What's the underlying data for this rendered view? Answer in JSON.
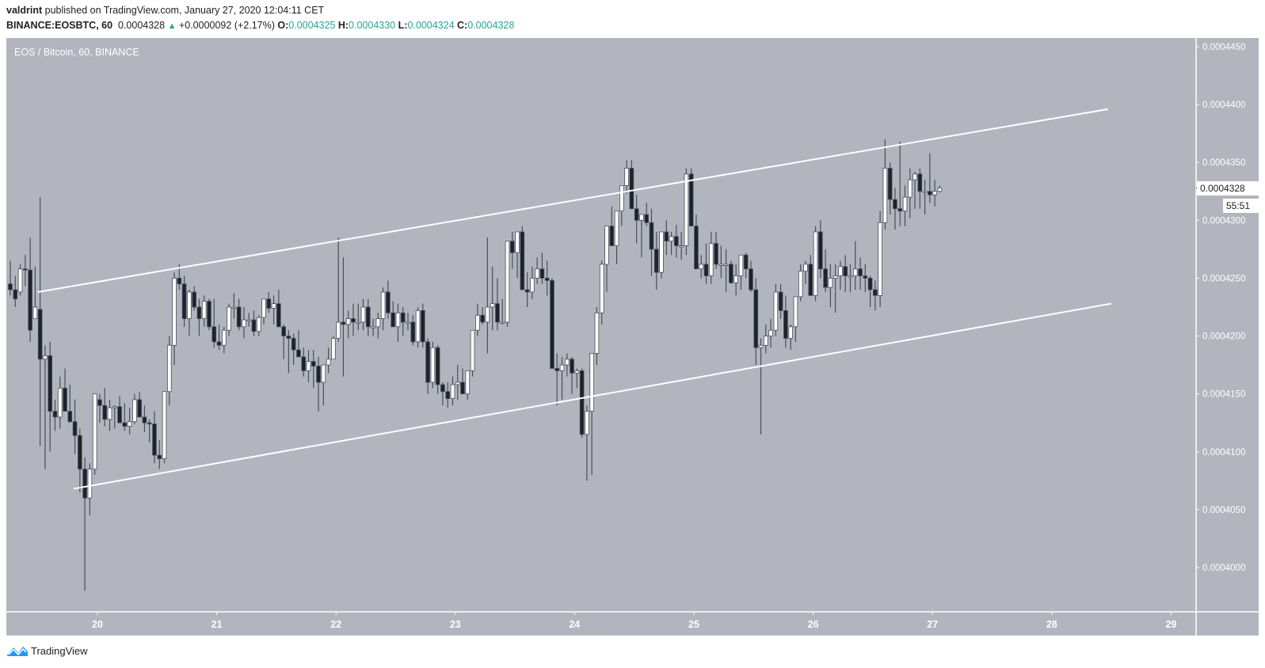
{
  "header": {
    "author": "valdrint",
    "published_text": " published on TradingView.com, January 27, 2020 12:04:11 CET",
    "symbol": "BINANCE:EOSBTC, 60",
    "last_price": "0.0004328",
    "change_icon": "triangle-up-icon",
    "change": "+0.0000092 (+2.17%)",
    "ohlc": {
      "o_label": "O:",
      "o": "0.0004325",
      "h_label": "H:",
      "h": "0.0004330",
      "l_label": "L:",
      "l": "0.0004324",
      "c_label": "C:",
      "c": "0.0004328"
    }
  },
  "chart": {
    "legend_title": "EOS / Bitcoin, 60, BINANCE",
    "current_price_tag": "0.0004328",
    "countdown_tag": "55:51",
    "colors": {
      "background": "#b2b5be",
      "up_candle": "#ffffff",
      "down_candle": "#1e222d",
      "wick": "#4a4e59",
      "trendline": "#ffffff",
      "axis_text": "#ffffff",
      "positive": "#26a69a"
    }
  },
  "footer": {
    "brand": "TradingView",
    "brand_icon": "tradingview-logo-icon"
  },
  "chart_data": {
    "type": "candlestick",
    "title": "EOS / Bitcoin, 60, BINANCE",
    "xlabel": "",
    "ylabel": "",
    "ylim": [
      0.000397,
      0.0004455
    ],
    "grid": false,
    "x_ticks": [
      "20",
      "21",
      "22",
      "23",
      "24",
      "25",
      "26",
      "27",
      "28",
      "29"
    ],
    "y_ticks": [
      "0.0004450",
      "0.0004400",
      "0.0004350",
      "0.0004300",
      "0.0004250",
      "0.0004200",
      "0.0004150",
      "0.0004100",
      "0.0004050",
      "0.0004000"
    ],
    "price_unit_note": "values below are price x 1e7 (e.g. 4250 = 0.0004250)",
    "trendlines": [
      {
        "name": "channel-upper",
        "from": {
          "day": 19.5,
          "price": 4238
        },
        "to": {
          "day": 28.47,
          "price": 4396
        }
      },
      {
        "name": "channel-lower",
        "from": {
          "day": 19.8,
          "price": 4068
        },
        "to": {
          "day": 28.5,
          "price": 4228
        }
      }
    ],
    "candles": [
      [
        4245,
        4265,
        4235,
        4240
      ],
      [
        4240,
        4252,
        4225,
        4232
      ],
      [
        4238,
        4262,
        4235,
        4258
      ],
      [
        4258,
        4270,
        4243,
        4257
      ],
      [
        4257,
        4285,
        4195,
        4205
      ],
      [
        4215,
        4260,
        4222,
        4225
      ],
      [
        4223,
        4320,
        4105,
        4180
      ],
      [
        4180,
        4192,
        4085,
        4183
      ],
      [
        4183,
        4195,
        4100,
        4135
      ],
      [
        4135,
        4145,
        4118,
        4130
      ],
      [
        4130,
        4165,
        4120,
        4155
      ],
      [
        4155,
        4172,
        4140,
        4135
      ],
      [
        4135,
        4158,
        4125,
        4126
      ],
      [
        4126,
        4145,
        4098,
        4114
      ],
      [
        4114,
        4120,
        4065,
        4085
      ],
      [
        4085,
        4095,
        3980,
        4060
      ],
      [
        4060,
        4090,
        4045,
        4085
      ],
      [
        4085,
        4135,
        4080,
        4150
      ],
      [
        4145,
        4150,
        4125,
        4140
      ],
      [
        4140,
        4155,
        4122,
        4128
      ],
      [
        4128,
        4145,
        4118,
        4138
      ],
      [
        4138,
        4140,
        4120,
        4139
      ],
      [
        4139,
        4148,
        4128,
        4125
      ],
      [
        4125,
        4142,
        4118,
        4122
      ],
      [
        4122,
        4138,
        4115,
        4126
      ],
      [
        4126,
        4150,
        4124,
        4145
      ],
      [
        4145,
        4152,
        4130,
        4130
      ],
      [
        4130,
        4140,
        4117,
        4125
      ],
      [
        4125,
        4128,
        4108,
        4124
      ],
      [
        4124,
        4135,
        4090,
        4097
      ],
      [
        4097,
        4110,
        4085,
        4094
      ],
      [
        4094,
        4152,
        4090,
        4152
      ],
      [
        4152,
        4200,
        4140,
        4192
      ],
      [
        4192,
        4255,
        4175,
        4250
      ],
      [
        4250,
        4262,
        4240,
        4245
      ],
      [
        4245,
        4252,
        4208,
        4215
      ],
      [
        4215,
        4240,
        4200,
        4238
      ],
      [
        4238,
        4243,
        4222,
        4225
      ],
      [
        4225,
        4232,
        4200,
        4215
      ],
      [
        4215,
        4235,
        4208,
        4230
      ],
      [
        4230,
        4232,
        4205,
        4208
      ],
      [
        4208,
        4232,
        4190,
        4195
      ],
      [
        4195,
        4210,
        4188,
        4192
      ],
      [
        4192,
        4208,
        4185,
        4205
      ],
      [
        4205,
        4228,
        4200,
        4225
      ],
      [
        4225,
        4237,
        4215,
        4225
      ],
      [
        4225,
        4232,
        4205,
        4208
      ],
      [
        4208,
        4225,
        4198,
        4214
      ],
      [
        4214,
        4220,
        4208,
        4214
      ],
      [
        4214,
        4222,
        4200,
        4204
      ],
      [
        4204,
        4218,
        4200,
        4216
      ],
      [
        4216,
        4232,
        4210,
        4232
      ],
      [
        4232,
        4238,
        4220,
        4224
      ],
      [
        4224,
        4235,
        4210,
        4228
      ],
      [
        4228,
        4240,
        4208,
        4208
      ],
      [
        4208,
        4210,
        4180,
        4200
      ],
      [
        4200,
        4205,
        4168,
        4198
      ],
      [
        4198,
        4202,
        4175,
        4188
      ],
      [
        4188,
        4205,
        4182,
        4182
      ],
      [
        4182,
        4190,
        4165,
        4170
      ],
      [
        4170,
        4188,
        4160,
        4178
      ],
      [
        4178,
        4188,
        4155,
        4174
      ],
      [
        4174,
        4182,
        4135,
        4160
      ],
      [
        4160,
        4172,
        4140,
        4175
      ],
      [
        4175,
        4190,
        4168,
        4180
      ],
      [
        4180,
        4200,
        4182,
        4198
      ],
      [
        4198,
        4285,
        4195,
        4212
      ],
      [
        4212,
        4268,
        4165,
        4210
      ],
      [
        4210,
        4222,
        4198,
        4215
      ],
      [
        4215,
        4228,
        4200,
        4212
      ],
      [
        4212,
        4228,
        4205,
        4212
      ],
      [
        4212,
        4232,
        4205,
        4225
      ],
      [
        4225,
        4232,
        4200,
        4208
      ],
      [
        4208,
        4215,
        4200,
        4208
      ],
      [
        4208,
        4220,
        4198,
        4215
      ],
      [
        4215,
        4242,
        4205,
        4238
      ],
      [
        4238,
        4248,
        4215,
        4220
      ],
      [
        4220,
        4230,
        4210,
        4208
      ],
      [
        4208,
        4228,
        4195,
        4220
      ],
      [
        4220,
        4225,
        4200,
        4212
      ],
      [
        4212,
        4220,
        4205,
        4212
      ],
      [
        4212,
        4218,
        4192,
        4195
      ],
      [
        4195,
        4225,
        4190,
        4222
      ],
      [
        4222,
        4228,
        4190,
        4195
      ],
      [
        4195,
        4198,
        4150,
        4160
      ],
      [
        4160,
        4195,
        4155,
        4190
      ],
      [
        4190,
        4192,
        4150,
        4158
      ],
      [
        4158,
        4160,
        4140,
        4152
      ],
      [
        4152,
        4160,
        4138,
        4146
      ],
      [
        4146,
        4165,
        4140,
        4158
      ],
      [
        4158,
        4175,
        4145,
        4160
      ],
      [
        4160,
        4172,
        4150,
        4150
      ],
      [
        4150,
        4165,
        4145,
        4170
      ],
      [
        4170,
        4205,
        4165,
        4205
      ],
      [
        4205,
        4228,
        4200,
        4218
      ],
      [
        4218,
        4225,
        4210,
        4212
      ],
      [
        4212,
        4285,
        4185,
        4225
      ],
      [
        4225,
        4260,
        4205,
        4228
      ],
      [
        4228,
        4250,
        4205,
        4212
      ],
      [
        4212,
        4232,
        4210,
        4212
      ],
      [
        4212,
        4282,
        4208,
        4282
      ],
      [
        4282,
        4290,
        4258,
        4272
      ],
      [
        4272,
        4285,
        4250,
        4290
      ],
      [
        4290,
        4295,
        4240,
        4240
      ],
      [
        4240,
        4255,
        4225,
        4238
      ],
      [
        4238,
        4260,
        4232,
        4250
      ],
      [
        4250,
        4268,
        4245,
        4258
      ],
      [
        4258,
        4272,
        4245,
        4250
      ],
      [
        4250,
        4265,
        4235,
        4248
      ],
      [
        4248,
        4250,
        4200,
        4172
      ],
      [
        4172,
        4185,
        4140,
        4170
      ],
      [
        4170,
        4182,
        4145,
        4175
      ],
      [
        4175,
        4185,
        4165,
        4180
      ],
      [
        4180,
        4182,
        4150,
        4168
      ],
      [
        4168,
        4172,
        4155,
        4170
      ],
      [
        4170,
        4172,
        4112,
        4115
      ],
      [
        4115,
        4140,
        4075,
        4135
      ],
      [
        4135,
        4180,
        4080,
        4185
      ],
      [
        4185,
        4225,
        4175,
        4220
      ],
      [
        4220,
        4265,
        4210,
        4262
      ],
      [
        4262,
        4295,
        4238,
        4295
      ],
      [
        4295,
        4312,
        4280,
        4278
      ],
      [
        4278,
        4298,
        4262,
        4308
      ],
      [
        4308,
        4325,
        4295,
        4330
      ],
      [
        4330,
        4352,
        4323,
        4345
      ],
      [
        4345,
        4352,
        4315,
        4310
      ],
      [
        4310,
        4322,
        4280,
        4300
      ],
      [
        4300,
        4305,
        4268,
        4305
      ],
      [
        4305,
        4315,
        4295,
        4298
      ],
      [
        4298,
        4310,
        4252,
        4275
      ],
      [
        4275,
        4290,
        4240,
        4255
      ],
      [
        4255,
        4290,
        4250,
        4290
      ],
      [
        4290,
        4300,
        4270,
        4282
      ],
      [
        4282,
        4290,
        4270,
        4286
      ],
      [
        4286,
        4296,
        4268,
        4278
      ],
      [
        4278,
        4290,
        4266,
        4278
      ],
      [
        4278,
        4345,
        4270,
        4340
      ],
      [
        4340,
        4345,
        4295,
        4295
      ],
      [
        4295,
        4305,
        4258,
        4258
      ],
      [
        4258,
        4270,
        4250,
        4262
      ],
      [
        4262,
        4280,
        4245,
        4252
      ],
      [
        4252,
        4290,
        4245,
        4280
      ],
      [
        4280,
        4290,
        4258,
        4262
      ],
      [
        4262,
        4278,
        4250,
        4262
      ],
      [
        4262,
        4275,
        4238,
        4262
      ],
      [
        4262,
        4265,
        4245,
        4246
      ],
      [
        4246,
        4262,
        4235,
        4252
      ],
      [
        4252,
        4270,
        4240,
        4270
      ],
      [
        4270,
        4272,
        4250,
        4258
      ],
      [
        4258,
        4265,
        4238,
        4240
      ],
      [
        4240,
        4250,
        4175,
        4190
      ],
      [
        4190,
        4198,
        4115,
        4192
      ],
      [
        4192,
        4210,
        4185,
        4200
      ],
      [
        4200,
        4215,
        4190,
        4205
      ],
      [
        4205,
        4245,
        4200,
        4238
      ],
      [
        4238,
        4245,
        4215,
        4222
      ],
      [
        4222,
        4235,
        4190,
        4198
      ],
      [
        4198,
        4210,
        4188,
        4208
      ],
      [
        4208,
        4230,
        4195,
        4234
      ],
      [
        4234,
        4262,
        4230,
        4256
      ],
      [
        4256,
        4265,
        4245,
        4262
      ],
      [
        4262,
        4270,
        4240,
        4235
      ],
      [
        4235,
        4295,
        4230,
        4290
      ],
      [
        4290,
        4300,
        4250,
        4258
      ],
      [
        4258,
        4275,
        4238,
        4242
      ],
      [
        4242,
        4262,
        4225,
        4250
      ],
      [
        4250,
        4262,
        4220,
        4252
      ],
      [
        4252,
        4265,
        4240,
        4260
      ],
      [
        4260,
        4270,
        4238,
        4252
      ],
      [
        4252,
        4262,
        4238,
        4252
      ],
      [
        4252,
        4282,
        4240,
        4258
      ],
      [
        4258,
        4268,
        4240,
        4252
      ],
      [
        4252,
        4262,
        4238,
        4250
      ],
      [
        4250,
        4252,
        4225,
        4240
      ],
      [
        4240,
        4248,
        4222,
        4235
      ],
      [
        4235,
        4308,
        4225,
        4298
      ],
      [
        4298,
        4370,
        4292,
        4345
      ],
      [
        4345,
        4350,
        4305,
        4318
      ],
      [
        4318,
        4328,
        4292,
        4310
      ],
      [
        4310,
        4368,
        4295,
        4308
      ],
      [
        4308,
        4330,
        4295,
        4320
      ],
      [
        4320,
        4345,
        4302,
        4335
      ],
      [
        4335,
        4342,
        4310,
        4340
      ],
      [
        4340,
        4345,
        4310,
        4325
      ],
      [
        4325,
        4335,
        4305,
        4325
      ],
      [
        4325,
        4358,
        4315,
        4322
      ],
      [
        4322,
        4335,
        4312,
        4325
      ],
      [
        4325,
        4330,
        4324,
        4328
      ]
    ]
  }
}
